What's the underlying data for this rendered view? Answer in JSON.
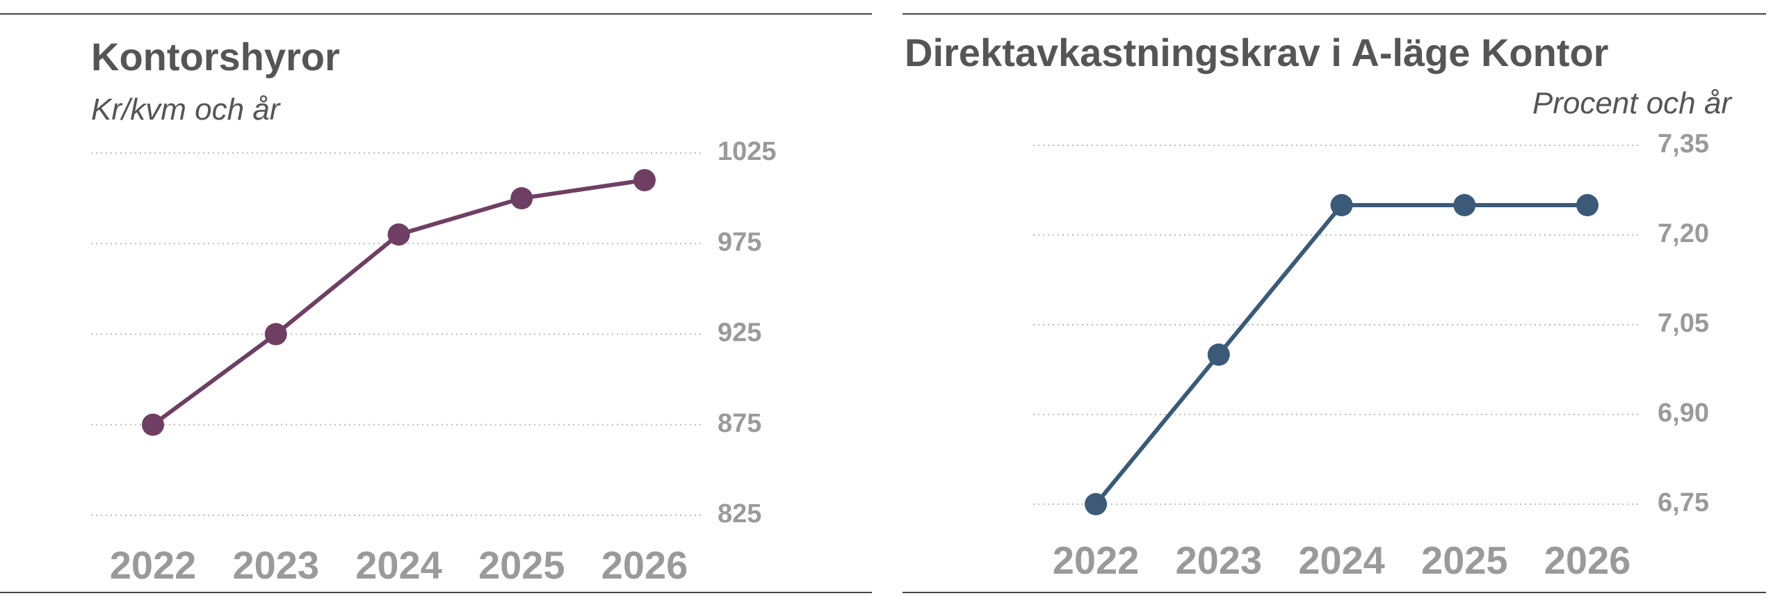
{
  "chart_data": [
    {
      "type": "line",
      "title": "Kontorshyror",
      "subtitle": "Kr/kvm och år",
      "x": [
        "2022",
        "2023",
        "2024",
        "2025",
        "2026"
      ],
      "series": [
        {
          "color": "#6e3f63",
          "values": [
            875,
            925,
            980,
            1000,
            1010
          ]
        }
      ],
      "ylim": [
        825,
        1025
      ],
      "yticks": [
        825,
        875,
        925,
        975,
        1025
      ],
      "grid": true
    },
    {
      "type": "line",
      "title": "Direktavkastningskrav i A-läge Kontor",
      "subtitle": "Procent och år",
      "x": [
        "2022",
        "2023",
        "2024",
        "2025",
        "2026"
      ],
      "series": [
        {
          "color": "#3a5a78",
          "values": [
            6.75,
            7.0,
            7.25,
            7.25,
            7.25
          ]
        }
      ],
      "ylim": [
        6.75,
        7.35
      ],
      "yticks": [
        {
          "value": 6.75,
          "label": "6,75"
        },
        {
          "value": 6.9,
          "label": "6,90"
        },
        {
          "value": 7.05,
          "label": "7,05"
        },
        {
          "value": 7.2,
          "label": "7,20"
        },
        {
          "value": 7.35,
          "label": "7,35"
        }
      ],
      "grid": true
    }
  ]
}
